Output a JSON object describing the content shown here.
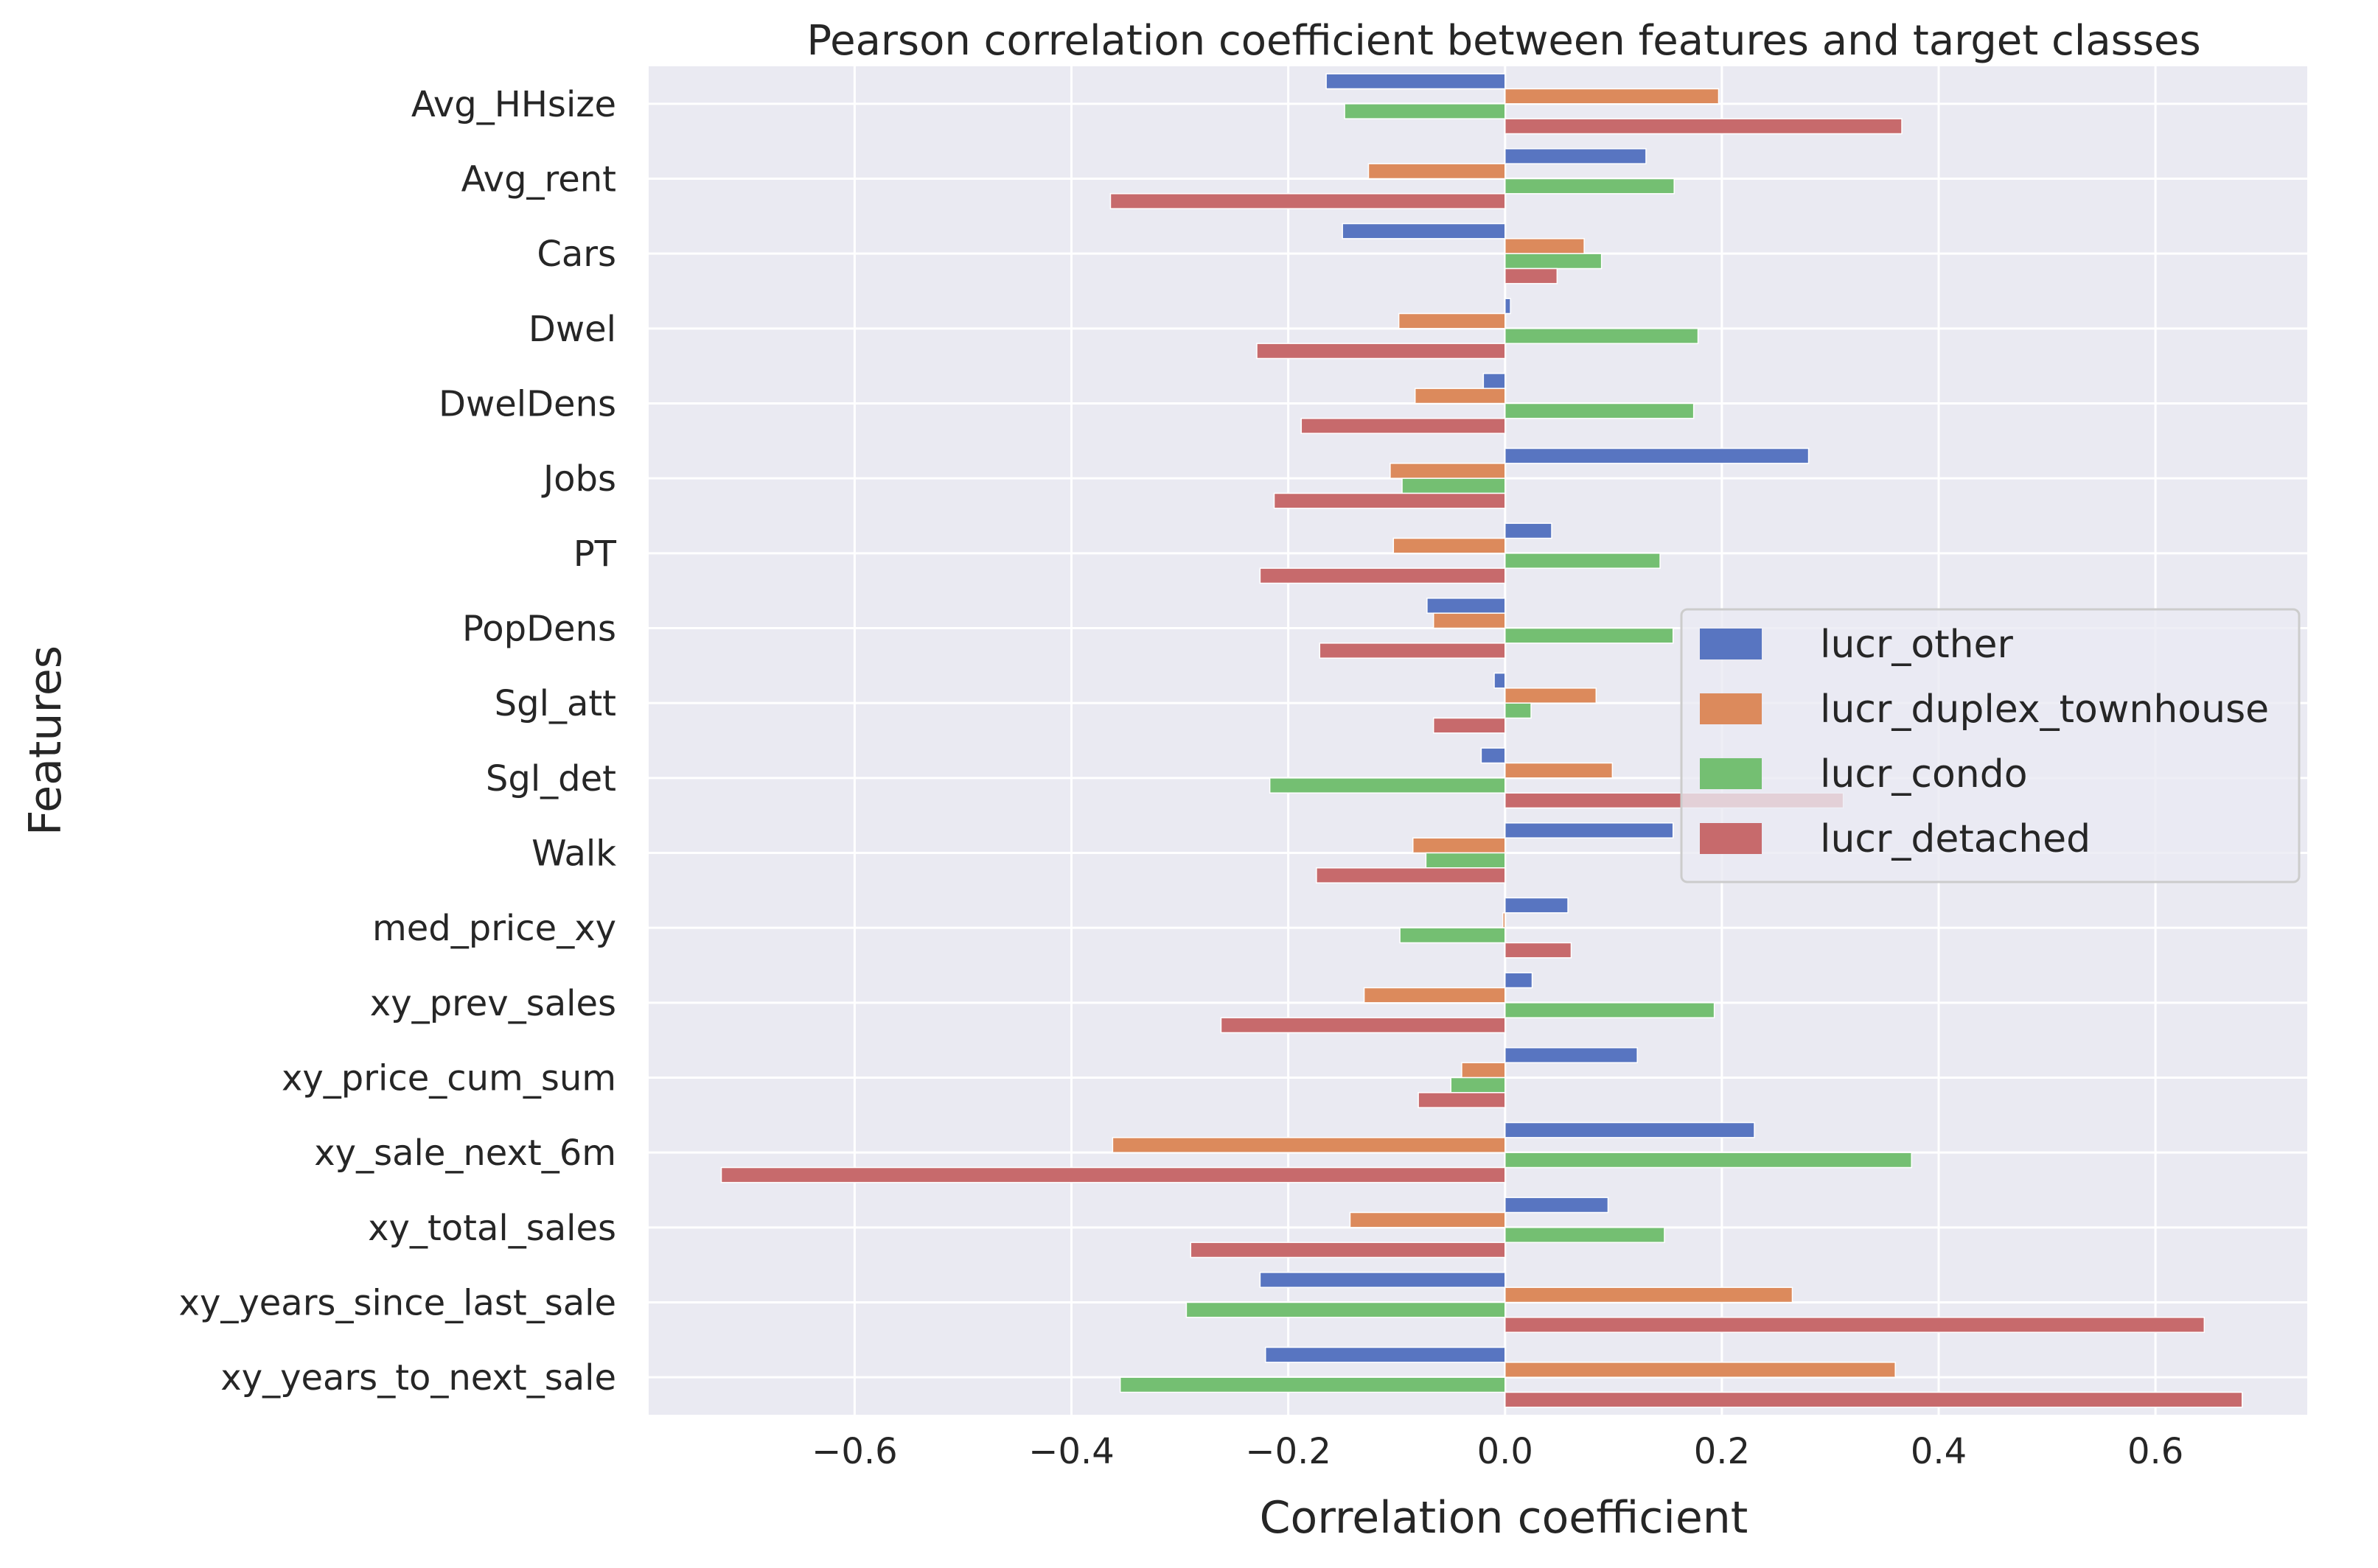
{
  "chart_data": {
    "type": "bar",
    "orientation": "horizontal",
    "title": "Pearson correlation coefficient between features and target classes",
    "xlabel": "Correlation coefficient",
    "ylabel": "Features",
    "xlim": [
      -0.79,
      0.74
    ],
    "xticks": [
      -0.6,
      -0.4,
      -0.2,
      0.0,
      0.2,
      0.4,
      0.6
    ],
    "xtick_labels": [
      "−0.6",
      "−0.4",
      "−0.2",
      "0.0",
      "0.2",
      "0.4",
      "0.6"
    ],
    "grid": true,
    "legend_position": "center-right",
    "categories": [
      "Avg_HHsize",
      "Avg_rent",
      "Cars",
      "Dwel",
      "DwelDens",
      "Jobs",
      "PT",
      "PopDens",
      "Sgl_att",
      "Sgl_det",
      "Walk",
      "med_price_xy",
      "xy_prev_sales",
      "xy_price_cum_sum",
      "xy_sale_next_6m",
      "xy_total_sales",
      "xy_years_since_last_sale",
      "xy_years_to_next_sale"
    ],
    "series": [
      {
        "name": "lucr_other",
        "color": "#5875c1",
        "values": [
          -0.165,
          0.13,
          -0.15,
          0.005,
          -0.02,
          0.28,
          0.043,
          -0.072,
          -0.01,
          -0.022,
          0.155,
          0.058,
          0.025,
          0.122,
          0.23,
          0.095,
          -0.226,
          -0.221
        ]
      },
      {
        "name": "lucr_duplex_townhouse",
        "color": "#dc8a5c",
        "values": [
          0.197,
          -0.126,
          0.073,
          -0.098,
          -0.083,
          -0.106,
          -0.103,
          -0.066,
          0.084,
          0.099,
          -0.085,
          -0.002,
          -0.13,
          -0.04,
          -0.362,
          -0.143,
          0.265,
          0.36
        ]
      },
      {
        "name": "lucr_condo",
        "color": "#74bf72",
        "values": [
          -0.148,
          0.156,
          0.089,
          0.178,
          0.174,
          -0.095,
          0.143,
          0.155,
          0.024,
          -0.217,
          -0.073,
          -0.097,
          0.193,
          -0.05,
          0.375,
          0.147,
          -0.294,
          -0.355
        ]
      },
      {
        "name": "lucr_detached",
        "color": "#c76a6c",
        "values": [
          0.366,
          -0.364,
          0.048,
          -0.229,
          -0.188,
          -0.213,
          -0.226,
          -0.171,
          -0.066,
          0.312,
          -0.174,
          0.061,
          -0.262,
          -0.08,
          -0.723,
          -0.29,
          0.645,
          0.68
        ]
      }
    ]
  }
}
